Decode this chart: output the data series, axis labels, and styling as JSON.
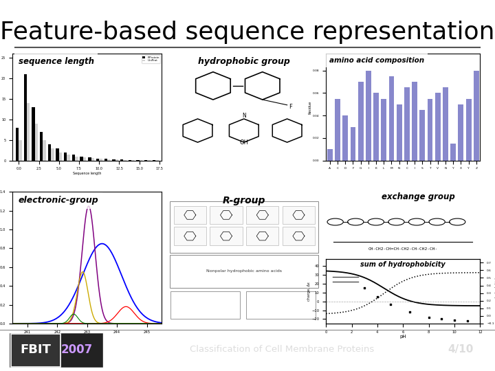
{
  "title": "Feature-based sequence representation",
  "title_fontsize": 26,
  "title_color": "#000000",
  "bg_color": "#ffffff",
  "footer_bg": "#1a1a1a",
  "separator_color": "#555555",
  "footer_text": "Classification of Cell Membrane Proteins",
  "footer_page": "4/10",
  "seq_len_bars_black": [
    8,
    21,
    13,
    7,
    4,
    3,
    2,
    1.5,
    1,
    0.8,
    0.5,
    0.4,
    0.3,
    0.2,
    0.15,
    0.1,
    0.08,
    0.06
  ],
  "seq_len_bars_white": [
    5,
    14,
    9,
    5,
    3,
    2,
    1.5,
    1,
    0.8,
    0.6,
    0.4,
    0.3,
    0.2,
    0.15,
    0.1,
    0.08,
    0.06,
    0.04
  ],
  "aa_comp_values": [
    0.01,
    0.055,
    0.04,
    0.03,
    0.07,
    0.08,
    0.06,
    0.055,
    0.075,
    0.05,
    0.065,
    0.07,
    0.045,
    0.055,
    0.06,
    0.065,
    0.015,
    0.05,
    0.055,
    0.08
  ],
  "aa_tick_labels": [
    "A",
    "C",
    "D",
    "F",
    "G",
    "I",
    "K",
    "L",
    "M",
    "N",
    "C",
    "I",
    "S",
    "T",
    "V",
    "N",
    "Y",
    "X",
    "Y",
    "Z"
  ]
}
